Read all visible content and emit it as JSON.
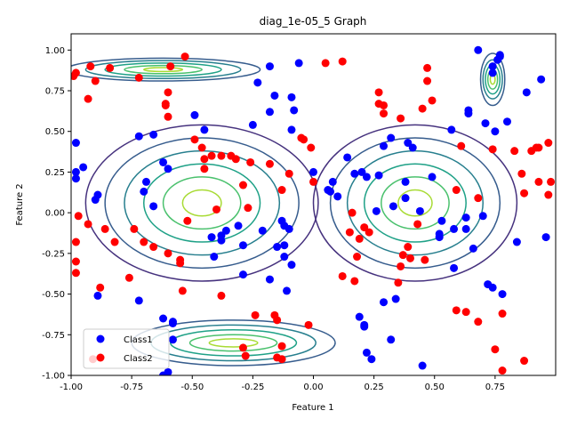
{
  "chart_data": {
    "type": "scatter",
    "title": "diag_1e-05_5 Graph",
    "xlabel": "Feature 1",
    "ylabel": "Feature 2",
    "xlim": [
      -1.0,
      1.0
    ],
    "ylim": [
      -1.0,
      1.1
    ],
    "xticks": [
      "-1.00",
      "-0.75",
      "-0.50",
      "-0.25",
      "0.00",
      "0.25",
      "0.50",
      "0.75"
    ],
    "yticks": [
      "-1.00",
      "-0.75",
      "-0.50",
      "-0.25",
      "0.00",
      "0.25",
      "0.50",
      "0.75",
      "1.00"
    ],
    "xtick_values": [
      -1.0,
      -0.75,
      -0.5,
      -0.25,
      0.0,
      0.25,
      0.5,
      0.75
    ],
    "ytick_values": [
      -1.0,
      -0.75,
      -0.5,
      -0.25,
      0.0,
      0.25,
      0.5,
      0.75,
      1.0
    ],
    "grid": false,
    "legend_position": "lower-left",
    "contours": [
      {
        "cx": -0.46,
        "cy": 0.06,
        "rx": [
          0.08,
          0.16,
          0.24,
          0.32,
          0.4,
          0.48
        ],
        "ry": [
          0.08,
          0.16,
          0.24,
          0.32,
          0.4,
          0.48
        ]
      },
      {
        "cx": 0.42,
        "cy": 0.06,
        "rx": [
          0.07,
          0.14,
          0.21,
          0.28,
          0.35,
          0.42
        ],
        "ry": [
          0.08,
          0.16,
          0.24,
          0.32,
          0.4,
          0.48
        ]
      },
      {
        "cx": -0.33,
        "cy": -0.8,
        "rx": [
          0.1,
          0.18,
          0.26,
          0.34,
          0.42
        ],
        "ry": [
          0.025,
          0.05,
          0.08,
          0.11,
          0.14
        ]
      },
      {
        "cx": -0.62,
        "cy": 0.88,
        "rx": [
          0.08,
          0.16,
          0.24,
          0.32,
          0.4
        ],
        "ry": [
          0.012,
          0.025,
          0.04,
          0.055,
          0.07
        ]
      },
      {
        "cx": 0.74,
        "cy": 0.82,
        "rx": [
          0.01,
          0.02,
          0.03,
          0.04,
          0.05
        ],
        "ry": [
          0.03,
          0.06,
          0.09,
          0.12,
          0.16
        ]
      }
    ],
    "contour_colors": [
      "#a8db34",
      "#4ac16d",
      "#1fa187",
      "#277f8e",
      "#365c8d",
      "#46327e",
      "#440154"
    ],
    "series": [
      {
        "name": "Class1",
        "color": "#0000ff",
        "points": [
          [
            -0.98,
            0.43
          ],
          [
            -0.98,
            0.25
          ],
          [
            -0.98,
            0.21
          ],
          [
            -0.95,
            0.28
          ],
          [
            -0.9,
            0.08
          ],
          [
            -0.89,
            0.11
          ],
          [
            -0.89,
            -0.51
          ],
          [
            -0.72,
            0.47
          ],
          [
            -0.72,
            -0.54
          ],
          [
            -0.7,
            0.13
          ],
          [
            -0.69,
            0.19
          ],
          [
            -0.66,
            0.48
          ],
          [
            -0.66,
            0.04
          ],
          [
            -0.62,
            0.31
          ],
          [
            -0.62,
            -0.65
          ],
          [
            -0.6,
            0.27
          ],
          [
            -0.58,
            -0.67
          ],
          [
            -0.58,
            -0.78
          ],
          [
            -0.58,
            -0.68
          ],
          [
            -0.62,
            -1.0
          ],
          [
            -0.6,
            -0.98
          ],
          [
            -0.49,
            0.6
          ],
          [
            -0.45,
            0.51
          ],
          [
            -0.42,
            -0.15
          ],
          [
            -0.41,
            -0.27
          ],
          [
            -0.38,
            -0.14
          ],
          [
            -0.38,
            -0.17
          ],
          [
            -0.36,
            -0.11
          ],
          [
            -0.31,
            -0.08
          ],
          [
            -0.29,
            -0.2
          ],
          [
            -0.29,
            -0.38
          ],
          [
            -0.25,
            0.54
          ],
          [
            -0.23,
            0.8
          ],
          [
            -0.21,
            -0.11
          ],
          [
            -0.18,
            0.62
          ],
          [
            -0.18,
            -0.41
          ],
          [
            -0.16,
            0.72
          ],
          [
            -0.15,
            -0.21
          ],
          [
            -0.13,
            -0.05
          ],
          [
            -0.12,
            -0.08
          ],
          [
            -0.12,
            -0.2
          ],
          [
            -0.12,
            -0.27
          ],
          [
            -0.11,
            -0.48
          ],
          [
            -0.1,
            -0.1
          ],
          [
            -0.09,
            -0.32
          ],
          [
            -0.09,
            0.71
          ],
          [
            -0.08,
            0.63
          ],
          [
            -0.09,
            0.51
          ],
          [
            -0.06,
            0.92
          ],
          [
            0.0,
            0.25
          ],
          [
            0.06,
            0.14
          ],
          [
            0.07,
            0.13
          ],
          [
            0.08,
            0.19
          ],
          [
            0.1,
            0.1
          ],
          [
            0.14,
            0.34
          ],
          [
            0.17,
            0.24
          ],
          [
            0.19,
            -0.64
          ],
          [
            0.2,
            0.25
          ],
          [
            0.21,
            -0.69
          ],
          [
            0.21,
            -0.7
          ],
          [
            0.22,
            0.22
          ],
          [
            0.22,
            -0.86
          ],
          [
            0.24,
            -0.9
          ],
          [
            0.26,
            0.01
          ],
          [
            0.27,
            0.23
          ],
          [
            0.29,
            0.41
          ],
          [
            0.29,
            -0.55
          ],
          [
            0.32,
            0.46
          ],
          [
            0.32,
            -0.78
          ],
          [
            0.33,
            0.04
          ],
          [
            0.34,
            -0.53
          ],
          [
            0.38,
            0.09
          ],
          [
            0.38,
            0.19
          ],
          [
            0.39,
            0.43
          ],
          [
            0.41,
            0.4
          ],
          [
            0.44,
            0.01
          ],
          [
            0.45,
            -0.94
          ],
          [
            0.49,
            0.22
          ],
          [
            0.52,
            -0.13
          ],
          [
            0.52,
            -0.15
          ],
          [
            0.53,
            -0.05
          ],
          [
            0.57,
            0.51
          ],
          [
            0.58,
            -0.1
          ],
          [
            0.58,
            -0.34
          ],
          [
            0.63,
            -0.03
          ],
          [
            0.63,
            -0.1
          ],
          [
            0.64,
            0.63
          ],
          [
            0.64,
            0.61
          ],
          [
            0.66,
            -0.22
          ],
          [
            0.68,
            1.0
          ],
          [
            0.7,
            -0.02
          ],
          [
            0.71,
            0.55
          ],
          [
            0.72,
            -0.44
          ],
          [
            0.74,
            0.86
          ],
          [
            0.74,
            0.9
          ],
          [
            0.74,
            -0.46
          ],
          [
            0.75,
            0.5
          ],
          [
            0.76,
            0.94
          ],
          [
            0.77,
            0.96
          ],
          [
            0.77,
            0.97
          ],
          [
            0.78,
            -0.5
          ],
          [
            0.8,
            0.56
          ],
          [
            0.84,
            -0.18
          ],
          [
            0.88,
            0.74
          ],
          [
            0.94,
            0.82
          ],
          [
            0.96,
            -0.15
          ],
          [
            -0.18,
            0.9
          ]
        ]
      },
      {
        "name": "Class2",
        "color": "#ff0000",
        "points": [
          [
            -0.98,
            0.86
          ],
          [
            -0.99,
            0.84
          ],
          [
            -0.98,
            -0.18
          ],
          [
            -0.98,
            -0.3
          ],
          [
            -0.97,
            -0.02
          ],
          [
            -0.98,
            -0.37
          ],
          [
            -0.93,
            -0.07
          ],
          [
            -0.93,
            0.7
          ],
          [
            -0.92,
            0.9
          ],
          [
            -0.9,
            0.81
          ],
          [
            -0.88,
            -0.46
          ],
          [
            -0.86,
            -0.1
          ],
          [
            -0.84,
            0.89
          ],
          [
            -0.82,
            -0.18
          ],
          [
            -0.76,
            -0.4
          ],
          [
            -0.74,
            -0.1
          ],
          [
            -0.72,
            0.83
          ],
          [
            -0.7,
            -0.18
          ],
          [
            -0.66,
            -0.21
          ],
          [
            -0.61,
            0.66
          ],
          [
            -0.61,
            0.67
          ],
          [
            -0.6,
            0.74
          ],
          [
            -0.6,
            0.59
          ],
          [
            -0.6,
            -0.25
          ],
          [
            -0.59,
            0.9
          ],
          [
            -0.55,
            -0.29
          ],
          [
            -0.55,
            -0.31
          ],
          [
            -0.54,
            -0.48
          ],
          [
            -0.53,
            0.96
          ],
          [
            -0.52,
            -0.05
          ],
          [
            -0.49,
            0.45
          ],
          [
            -0.46,
            0.4
          ],
          [
            -0.45,
            0.33
          ],
          [
            -0.45,
            0.27
          ],
          [
            -0.42,
            0.35
          ],
          [
            -0.4,
            0.02
          ],
          [
            -0.38,
            0.35
          ],
          [
            -0.38,
            -0.51
          ],
          [
            -0.34,
            0.35
          ],
          [
            -0.32,
            0.33
          ],
          [
            -0.29,
            0.17
          ],
          [
            -0.29,
            -0.83
          ],
          [
            -0.28,
            -0.88
          ],
          [
            -0.27,
            0.03
          ],
          [
            -0.26,
            0.31
          ],
          [
            -0.24,
            -0.63
          ],
          [
            -0.18,
            0.3
          ],
          [
            -0.16,
            -0.63
          ],
          [
            -0.15,
            -0.66
          ],
          [
            -0.13,
            0.14
          ],
          [
            -0.1,
            0.24
          ],
          [
            -0.13,
            -0.82
          ],
          [
            -0.15,
            -0.89
          ],
          [
            -0.13,
            -0.9
          ],
          [
            -0.05,
            0.46
          ],
          [
            -0.04,
            0.45
          ],
          [
            -0.02,
            -0.69
          ],
          [
            -0.01,
            0.4
          ],
          [
            0.0,
            0.19
          ],
          [
            0.05,
            0.92
          ],
          [
            0.12,
            0.93
          ],
          [
            0.12,
            -0.39
          ],
          [
            0.15,
            -0.12
          ],
          [
            0.16,
            0.0
          ],
          [
            0.17,
            -0.42
          ],
          [
            0.18,
            -0.27
          ],
          [
            0.19,
            -0.16
          ],
          [
            0.21,
            -0.09
          ],
          [
            0.23,
            -0.12
          ],
          [
            0.27,
            0.74
          ],
          [
            0.27,
            0.67
          ],
          [
            0.29,
            0.66
          ],
          [
            0.29,
            0.61
          ],
          [
            0.36,
            0.58
          ],
          [
            0.35,
            -0.43
          ],
          [
            0.37,
            -0.26
          ],
          [
            0.36,
            -0.33
          ],
          [
            0.39,
            -0.21
          ],
          [
            0.4,
            -0.28
          ],
          [
            0.43,
            -0.07
          ],
          [
            0.45,
            0.64
          ],
          [
            0.46,
            -0.29
          ],
          [
            0.47,
            0.89
          ],
          [
            0.47,
            0.81
          ],
          [
            0.49,
            0.69
          ],
          [
            0.59,
            -0.6
          ],
          [
            0.61,
            0.41
          ],
          [
            0.63,
            -0.61
          ],
          [
            0.68,
            0.09
          ],
          [
            0.68,
            -0.67
          ],
          [
            0.74,
            0.39
          ],
          [
            0.75,
            -0.84
          ],
          [
            0.78,
            -0.62
          ],
          [
            0.78,
            -0.97
          ],
          [
            0.83,
            0.38
          ],
          [
            0.86,
            0.24
          ],
          [
            0.87,
            0.12
          ],
          [
            0.87,
            -0.91
          ],
          [
            0.9,
            0.38
          ],
          [
            0.92,
            0.4
          ],
          [
            0.93,
            0.4
          ],
          [
            0.93,
            0.19
          ],
          [
            0.97,
            0.11
          ],
          [
            0.97,
            0.43
          ],
          [
            0.98,
            0.19
          ],
          [
            -0.91,
            -0.9
          ],
          [
            0.59,
            0.14
          ]
        ]
      }
    ]
  },
  "legend": [
    {
      "label": "Class1",
      "color": "#0000ff"
    },
    {
      "label": "Class2",
      "color": "#ff0000"
    }
  ]
}
